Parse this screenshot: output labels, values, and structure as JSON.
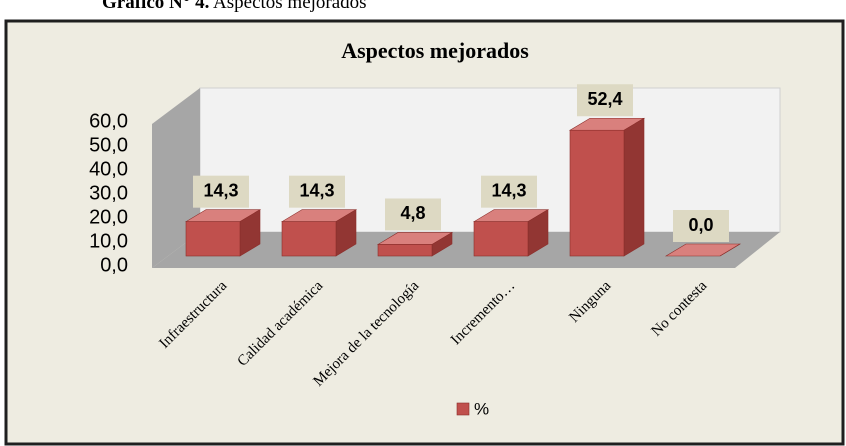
{
  "caption": {
    "number": "Gráfico N° 4.",
    "text": "Aspectos mejorados"
  },
  "chart_data": {
    "type": "bar3d",
    "title": "Aspectos mejorados",
    "categories": [
      "Infraestructura",
      "Calidad académica",
      "Mejora de la tecnología",
      "Incremento…",
      "Ninguna",
      "No contesta"
    ],
    "series": [
      {
        "name": "%",
        "color": "#c0504d",
        "values": [
          14.3,
          14.3,
          4.8,
          14.3,
          52.4,
          0.0
        ],
        "value_labels": [
          "14,3",
          "14,3",
          "4,8",
          "14,3",
          "52,4",
          "0,0"
        ]
      }
    ],
    "ylim": [
      0,
      60
    ],
    "yticks": [
      {
        "value": 0,
        "label": "0,0"
      },
      {
        "value": 10,
        "label": "10,0"
      },
      {
        "value": 20,
        "label": "20,0"
      },
      {
        "value": 30,
        "label": "30,0"
      },
      {
        "value": 40,
        "label": "40,0"
      },
      {
        "value": 50,
        "label": "50,0"
      },
      {
        "value": 60,
        "label": "60,0"
      }
    ],
    "grid": false,
    "legend": "bottom"
  }
}
